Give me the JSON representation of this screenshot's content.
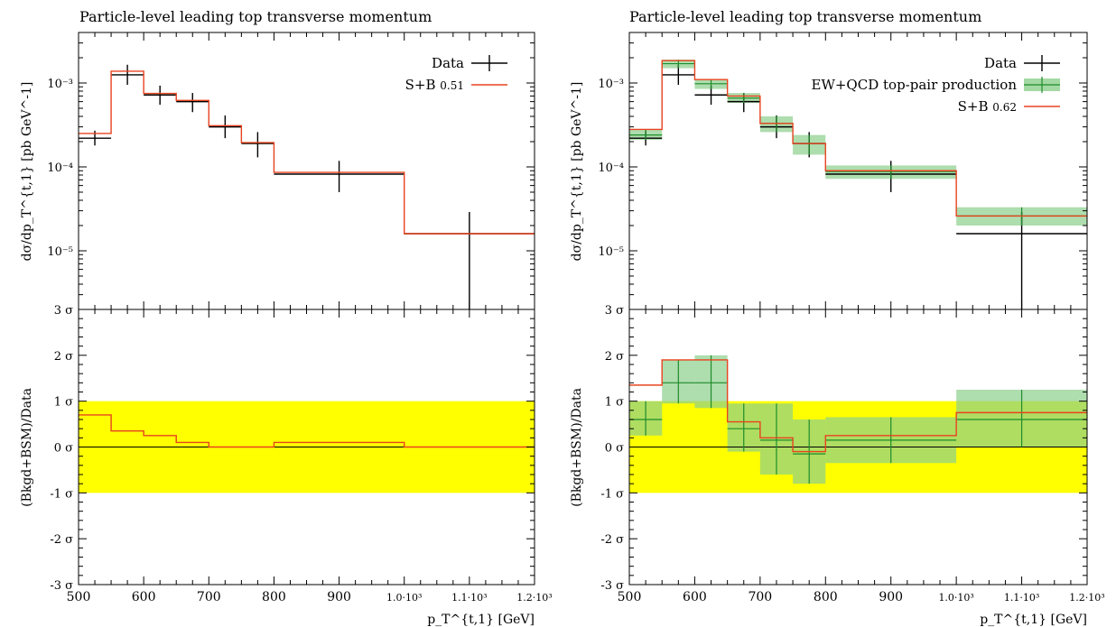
{
  "colors": {
    "data": "#000000",
    "sb": "#e8431f",
    "ew": "#1f8c2a",
    "ew_band": "#8ccf8c",
    "yellow": "#ffff00"
  },
  "chart_data": [
    {
      "type": "line",
      "title": "Particle-level leading top transverse momentum",
      "xlabel": "p_T^{t,1} [GeV]",
      "ylabel_main": "dσ/dp_T^{t,1} [pb GeV^-1]",
      "ylabel_ratio": "(Bkgd+BSM)/Data",
      "x_ticklabels": [
        "500",
        "600",
        "700",
        "800",
        "900",
        "1.0·10³",
        "1.1·10³",
        "1.2·10³"
      ],
      "y_ticklabels_main": [
        "10⁻³",
        "10⁻⁴",
        "10⁻⁵"
      ],
      "y_ticklabels_ratio": [
        "3 σ",
        "2 σ",
        "1 σ",
        "0 σ",
        "-1 σ",
        "-2 σ",
        "-3 σ"
      ],
      "xlim": [
        500,
        1200
      ],
      "ylim_main": [
        2e-06,
        0.004
      ],
      "ylim_ratio": [
        -3,
        3
      ],
      "log_y": true,
      "x_edges": [
        500,
        550,
        600,
        650,
        700,
        750,
        800,
        1000,
        1200
      ],
      "legend": [
        {
          "label": "Data",
          "kind": "data"
        },
        {
          "label": "S+B",
          "value": "0.51",
          "kind": "sb"
        }
      ],
      "series": [
        {
          "name": "Data",
          "values": [
            0.00022,
            0.00125,
            0.00072,
            0.0006,
            0.0003,
            0.00019,
            8.2e-05,
            1.6e-05
          ],
          "err_lo": [
            0.00018,
            0.00095,
            0.00055,
            0.00045,
            0.00022,
            0.00013,
            5e-05,
            2e-06
          ],
          "err_hi": [
            0.00027,
            0.00165,
            0.00093,
            0.00076,
            0.00041,
            0.00026,
            0.000118,
            2.9e-05
          ]
        },
        {
          "name": "S+B",
          "values": [
            0.00025,
            0.00138,
            0.00075,
            0.00062,
            0.00031,
            0.000195,
            8.6e-05,
            1.6e-05
          ]
        }
      ],
      "ratio": {
        "sb_sigma": [
          0.7,
          0.35,
          0.25,
          0.1,
          0.0,
          0.0,
          0.1,
          0.0
        ]
      }
    },
    {
      "type": "line",
      "title": "Particle-level leading top transverse momentum",
      "xlabel": "p_T^{t,1} [GeV]",
      "ylabel_main": "dσ/dp_T^{t,1} [pb GeV^-1]",
      "ylabel_ratio": "(Bkgd+BSM)/Data",
      "x_ticklabels": [
        "500",
        "600",
        "700",
        "800",
        "900",
        "1.0·10³",
        "1.1·10³",
        "1.2·10³"
      ],
      "y_ticklabels_main": [
        "10⁻³",
        "10⁻⁴",
        "10⁻⁵"
      ],
      "y_ticklabels_ratio": [
        "3 σ",
        "2 σ",
        "1 σ",
        "0 σ",
        "-1 σ",
        "-2 σ",
        "-3 σ"
      ],
      "xlim": [
        500,
        1200
      ],
      "ylim_main": [
        2e-06,
        0.004
      ],
      "ylim_ratio": [
        -3,
        3
      ],
      "log_y": true,
      "x_edges": [
        500,
        550,
        600,
        650,
        700,
        750,
        800,
        1000,
        1200
      ],
      "legend": [
        {
          "label": "Data",
          "kind": "data"
        },
        {
          "label": "EW+QCD top-pair production",
          "kind": "ew"
        },
        {
          "label": "S+B",
          "value": "0.62",
          "kind": "sb"
        }
      ],
      "series": [
        {
          "name": "Data",
          "values": [
            0.00022,
            0.00125,
            0.00072,
            0.0006,
            0.0003,
            0.00019,
            8.2e-05,
            1.6e-05
          ],
          "err_lo": [
            0.00018,
            0.00095,
            0.00055,
            0.00045,
            0.00022,
            0.00013,
            5e-05,
            2e-06
          ],
          "err_hi": [
            0.00027,
            0.00165,
            0.00093,
            0.00076,
            0.00041,
            0.00026,
            0.000118,
            2.9e-05
          ]
        },
        {
          "name": "EW+QCD top-pair production",
          "values": [
            0.00024,
            0.0017,
            0.00098,
            0.00066,
            0.00033,
            0.00019,
            8.8e-05,
            2.6e-05
          ],
          "band_lo": [
            0.00021,
            0.0015,
            0.00085,
            0.00058,
            0.00026,
            0.00014,
            7.2e-05,
            2e-05
          ],
          "band_hi": [
            0.00028,
            0.0019,
            0.00111,
            0.00076,
            0.0004,
            0.00024,
            0.000104,
            3.3e-05
          ]
        },
        {
          "name": "S+B",
          "values": [
            0.00028,
            0.00185,
            0.0011,
            0.0007,
            0.00033,
            0.00019,
            9e-05,
            2.6e-05
          ]
        }
      ],
      "ratio": {
        "ew_sigma": [
          0.6,
          1.4,
          1.4,
          0.4,
          0.15,
          -0.15,
          0.15,
          0.6
        ],
        "ew_lo": [
          0.25,
          0.95,
          0.85,
          -0.1,
          -0.6,
          -0.8,
          -0.35,
          0.0
        ],
        "ew_hi": [
          1.0,
          1.9,
          2.0,
          0.95,
          0.95,
          0.6,
          0.65,
          1.25
        ],
        "sb_sigma": [
          1.35,
          1.9,
          1.9,
          0.55,
          0.2,
          -0.1,
          0.25,
          0.75
        ]
      }
    }
  ]
}
